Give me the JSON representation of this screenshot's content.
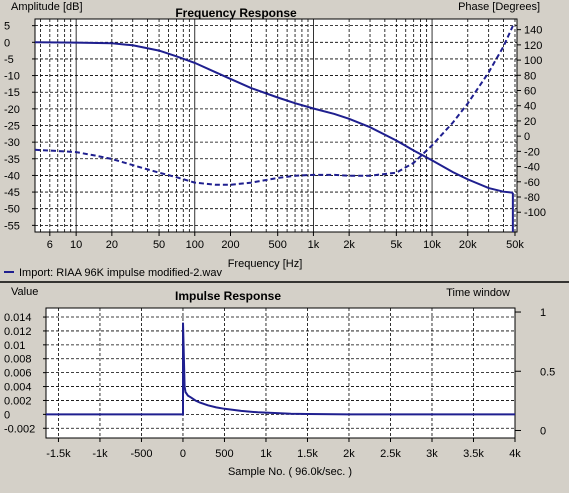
{
  "chart_data": [
    {
      "type": "line",
      "title": "Frequency Response",
      "xlabel": "Frequency [Hz]",
      "ylabel": "Amplitude [dB]",
      "y2label": "Phase [Degrees]",
      "xscale": "log",
      "xlim": [
        4.5,
        52000
      ],
      "ylim": [
        -57,
        7
      ],
      "y2lim": [
        -126,
        154
      ],
      "x_ticks": [
        6,
        10,
        20,
        50,
        100,
        200,
        500,
        1000,
        2000,
        5000,
        10000,
        20000,
        50000
      ],
      "x_tick_labels": [
        "6",
        "10",
        "20",
        "50",
        "100",
        "200",
        "500",
        "1k",
        "2k",
        "5k",
        "10k",
        "20k",
        "50k"
      ],
      "y_ticks": [
        5,
        0,
        -5,
        -10,
        -15,
        -20,
        -25,
        -30,
        -35,
        -40,
        -45,
        -50,
        -55
      ],
      "y2_ticks": [
        140,
        120,
        100,
        80,
        60,
        40,
        20,
        0,
        -20,
        -40,
        -60,
        -80,
        -100
      ],
      "grid": true,
      "legend": "bottom-left",
      "series": [
        {
          "name": "Import: RIAA 96K impulse modified-2.wav",
          "axis": "left",
          "style": "solid",
          "color": "#1f1f8f",
          "x": [
            4.5,
            10,
            20,
            30,
            50,
            70,
            100,
            150,
            200,
            300,
            500,
            700,
            1000,
            1500,
            2000,
            3000,
            5000,
            7000,
            10000,
            15000,
            20000,
            30000,
            40000,
            48000
          ],
          "y": [
            0,
            -0.1,
            -0.3,
            -0.9,
            -2.5,
            -4.2,
            -6.2,
            -9.0,
            -11.0,
            -13.8,
            -16.6,
            -18.3,
            -19.9,
            -21.5,
            -23.0,
            -25.5,
            -29.5,
            -32.5,
            -35.5,
            -39.0,
            -41.2,
            -43.8,
            -44.9,
            -45.2
          ]
        },
        {
          "name": "Phase",
          "axis": "right",
          "style": "dashed",
          "color": "#1f1f8f",
          "x": [
            4.5,
            6,
            8,
            10,
            15,
            20,
            30,
            50,
            70,
            100,
            150,
            200,
            300,
            500,
            700,
            1000,
            1500,
            2000,
            3000,
            5000,
            7000,
            10000,
            15000,
            20000,
            30000,
            40000,
            48000
          ],
          "y": [
            -18,
            -19,
            -20,
            -21,
            -26,
            -30,
            -38,
            -48,
            -54,
            -61,
            -64,
            -64,
            -61,
            -55,
            -52,
            -51,
            -51,
            -52,
            -52,
            -48,
            -35,
            -12,
            18,
            43,
            84,
            118,
            145
          ]
        }
      ]
    },
    {
      "type": "line",
      "title": "Impulse Response",
      "xlabel": "Sample No. ( 96.0k/sec. )",
      "ylabel": "Value",
      "y2label": "Time window",
      "xlim": [
        -1650,
        4000
      ],
      "ylim": [
        -0.0034,
        0.0153
      ],
      "y2lim": [
        -0.0635,
        1.034
      ],
      "x_ticks": [
        -1500,
        -1000,
        -500,
        0,
        500,
        1000,
        1500,
        2000,
        2500,
        3000,
        3500,
        4000
      ],
      "x_tick_labels": [
        "-1.5k",
        "-1k",
        "-500",
        "0",
        "500",
        "1k",
        "1.5k",
        "2k",
        "2.5k",
        "3k",
        "3.5k",
        "4k"
      ],
      "y_ticks": [
        0.014,
        0.012,
        0.01,
        0.008,
        0.006,
        0.004,
        0.002,
        0,
        -0.002
      ],
      "y_tick_labels": [
        "0.014",
        "0.012",
        "0.01",
        "0.008",
        "0.006",
        "0.004",
        "0.002",
        "0",
        "-0.002"
      ],
      "y2_ticks": [
        1,
        0.5,
        0
      ],
      "y2_tick_labels": [
        "1",
        "0.5",
        "0"
      ],
      "grid": true,
      "series": [
        {
          "name": "Impulse",
          "color": "#1f1f8f",
          "x": [
            -1650,
            -5,
            0,
            0,
            20,
            30,
            60,
            100,
            150,
            200,
            300,
            400,
            500,
            700,
            900,
            1100,
            1300,
            1500,
            2000,
            3000,
            4000
          ],
          "y": [
            0,
            0,
            0,
            0.0132,
            0.004,
            0.0032,
            0.0027,
            0.0024,
            0.002,
            0.0017,
            0.0013,
            0.001,
            0.0008,
            0.0005,
            0.0003,
            0.0002,
            0.0001,
            5e-05,
            0,
            0,
            0
          ]
        }
      ]
    }
  ]
}
